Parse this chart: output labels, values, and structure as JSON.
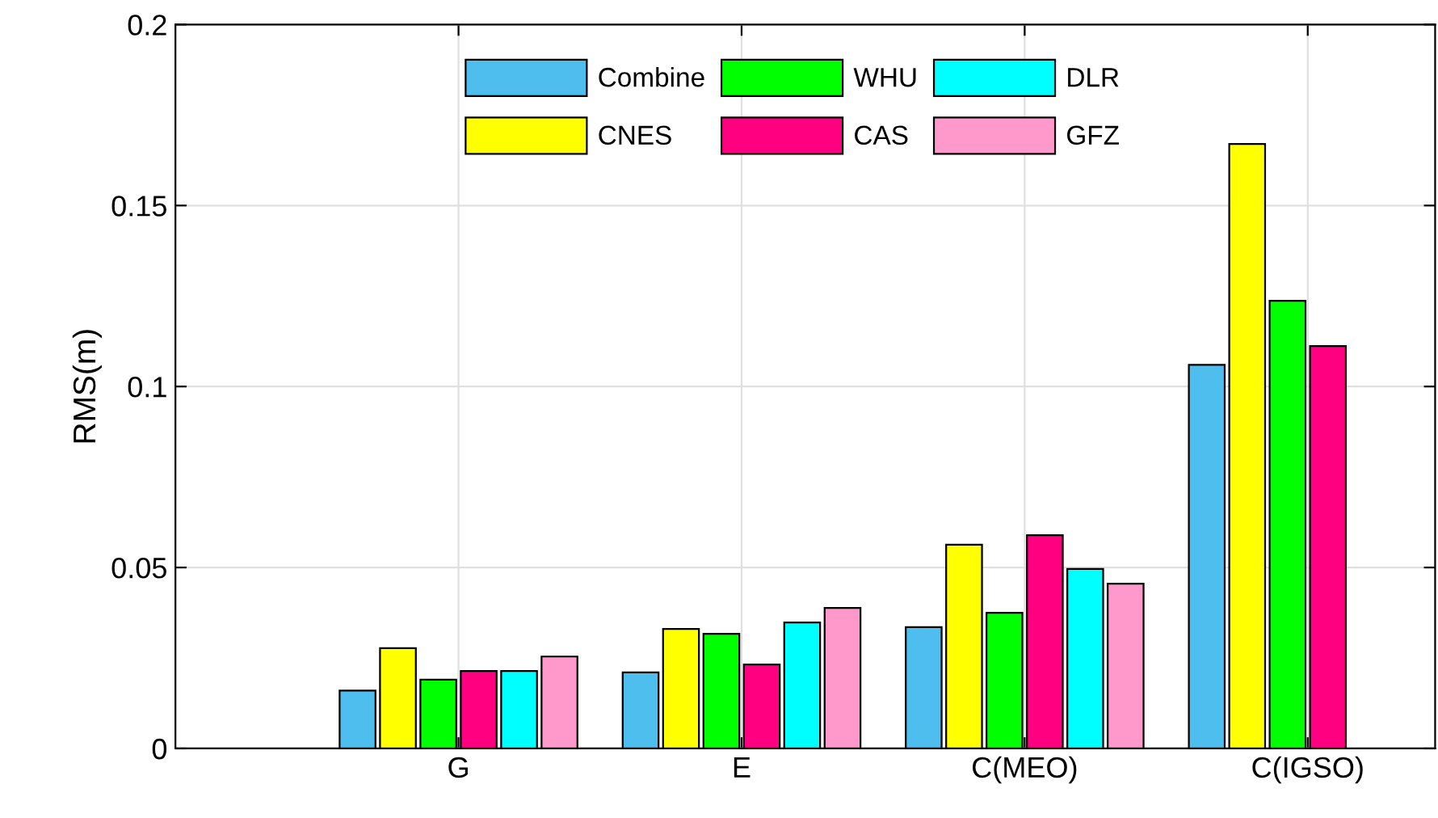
{
  "chart_data": {
    "type": "bar",
    "ylabel": "RMS(m)",
    "categories": [
      "G",
      "E",
      "C(MEO)",
      "C(IGSO)"
    ],
    "series": [
      {
        "name": "Combine",
        "color": "#4dbeee",
        "values": [
          0.016,
          0.021,
          0.0335,
          0.106
        ]
      },
      {
        "name": "CNES",
        "color": "#ffff00",
        "values": [
          0.0277,
          0.033,
          0.0563,
          0.167
        ]
      },
      {
        "name": "WHU",
        "color": "#00ff00",
        "values": [
          0.019,
          0.0317,
          0.0375,
          0.1237
        ]
      },
      {
        "name": "CAS",
        "color": "#ff0080",
        "values": [
          0.0214,
          0.0232,
          0.0589,
          0.1112
        ]
      },
      {
        "name": "DLR",
        "color": "#00ffff",
        "values": [
          0.0214,
          0.0348,
          0.0496,
          null
        ]
      },
      {
        "name": "GFZ",
        "color": "#ff99cc",
        "values": [
          0.0254,
          0.0388,
          0.0455,
          null
        ]
      }
    ],
    "ylim": [
      0,
      0.2
    ],
    "yticks": [
      0,
      0.05,
      0.1,
      0.15,
      0.2
    ],
    "grid": true,
    "legend": "top"
  }
}
